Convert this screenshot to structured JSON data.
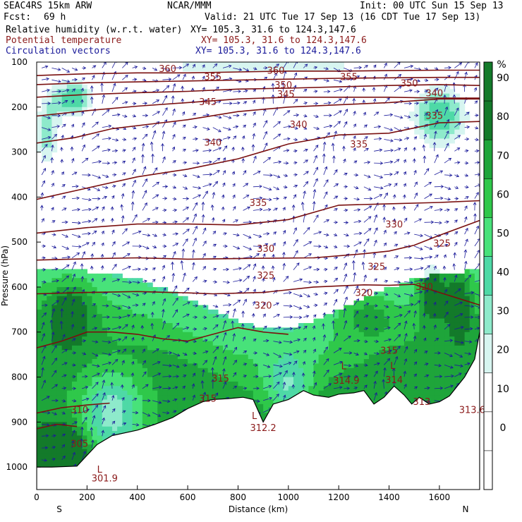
{
  "header": {
    "model": "SEAC4RS 15km ARW",
    "center": "NCAR/MMM",
    "init": "Init: 00 UTC Sun 15 Sep 13",
    "fcst_label": "Fcst:",
    "fcst_value": "69 h",
    "valid": "Valid: 21 UTC Tue 17 Sep 13 (16 CDT Tue 17 Sep 13)",
    "field1": "Relative humidity (w.r.t. water)",
    "field1_xy": "XY= 105.3, 31.6 to 124.3,147.6",
    "field2": "Potential temperature",
    "field2_xy": "XY= 105.3, 31.6 to 124.3,147.6",
    "field3": "Circulation vectors",
    "field3_xy": "XY= 105.3, 31.6 to 124.3,147.6"
  },
  "colors": {
    "rh_fill": [
      "#ffffff",
      "#ffffff",
      "#ffffff",
      "#d7f5f0",
      "#8eeacb",
      "#4ed9a6",
      "#48e27a",
      "#2fc84a",
      "#1ea53a",
      "#137a2a"
    ],
    "contour": "#7a1010",
    "vector": "#1a1a9a",
    "terrain": "#ffffff"
  },
  "chart_data": {
    "type": "heatmap",
    "xlabel": "Distance (km)",
    "ylabel": "Pressure (hPa)",
    "xlim": [
      0,
      1760
    ],
    "ylim": [
      1050,
      100
    ],
    "x_ticks": [
      0,
      200,
      400,
      600,
      800,
      1000,
      1200,
      1400,
      1600
    ],
    "y_ticks": [
      100,
      200,
      300,
      400,
      500,
      600,
      700,
      800,
      900,
      1000
    ],
    "endpoints": {
      "left": "S",
      "right": "N"
    },
    "colorbar": {
      "unit": "%",
      "ticks": [
        90,
        80,
        70,
        60,
        50,
        40,
        30,
        20,
        10,
        0
      ]
    },
    "terrain_surface": [
      [
        0,
        1000
      ],
      [
        60,
        1000
      ],
      [
        160,
        998
      ],
      [
        240,
        950
      ],
      [
        300,
        930
      ],
      [
        400,
        918
      ],
      [
        470,
        905
      ],
      [
        540,
        890
      ],
      [
        600,
        870
      ],
      [
        660,
        855
      ],
      [
        700,
        850
      ],
      [
        760,
        848
      ],
      [
        820,
        845
      ],
      [
        860,
        850
      ],
      [
        900,
        900
      ],
      [
        940,
        860
      ],
      [
        1000,
        850
      ],
      [
        1060,
        830
      ],
      [
        1100,
        840
      ],
      [
        1160,
        845
      ],
      [
        1200,
        838
      ],
      [
        1260,
        835
      ],
      [
        1300,
        830
      ],
      [
        1340,
        860
      ],
      [
        1380,
        845
      ],
      [
        1420,
        820
      ],
      [
        1460,
        840
      ],
      [
        1490,
        860
      ],
      [
        1520,
        845
      ],
      [
        1560,
        860
      ],
      [
        1600,
        855
      ],
      [
        1640,
        842
      ],
      [
        1700,
        800
      ],
      [
        1740,
        760
      ],
      [
        1760,
        700
      ]
    ],
    "theta_contours": [
      {
        "level": 305,
        "points": [
          [
            0,
            915
          ],
          [
            80,
            905
          ],
          [
            160,
            910
          ]
        ]
      },
      {
        "level": 310,
        "points": [
          [
            0,
            880
          ],
          [
            100,
            868
          ],
          [
            200,
            862
          ],
          [
            290,
            858
          ]
        ]
      },
      {
        "level": 315,
        "points": [
          [
            0,
            735
          ],
          [
            100,
            720
          ],
          [
            200,
            700
          ],
          [
            300,
            700
          ],
          [
            400,
            705
          ],
          [
            500,
            715
          ],
          [
            600,
            720
          ],
          [
            700,
            705
          ],
          [
            800,
            690
          ],
          [
            900,
            700
          ],
          [
            1000,
            705
          ]
        ]
      },
      {
        "level": 320,
        "points": [
          [
            0,
            615
          ],
          [
            200,
            612
          ],
          [
            400,
            610
          ],
          [
            600,
            613
          ],
          [
            700,
            615
          ],
          [
            900,
            612
          ],
          [
            1100,
            600
          ],
          [
            1300,
            595
          ],
          [
            1400,
            596
          ],
          [
            1500,
            594
          ],
          [
            1600,
            612
          ],
          [
            1760,
            640
          ]
        ]
      },
      {
        "level": 325,
        "points": [
          [
            0,
            540
          ],
          [
            200,
            537
          ],
          [
            400,
            535
          ],
          [
            600,
            538
          ],
          [
            900,
            536
          ],
          [
            1100,
            535
          ],
          [
            1300,
            526
          ],
          [
            1400,
            520
          ],
          [
            1500,
            507
          ],
          [
            1600,
            485
          ],
          [
            1760,
            452
          ]
        ]
      },
      {
        "level": 330,
        "points": [
          [
            0,
            480
          ],
          [
            200,
            468
          ],
          [
            400,
            460
          ],
          [
            600,
            460
          ],
          [
            800,
            462
          ],
          [
            1000,
            450
          ],
          [
            1200,
            418
          ],
          [
            1400,
            415
          ],
          [
            1600,
            412
          ],
          [
            1760,
            408
          ]
        ]
      },
      {
        "level": 335,
        "points": [
          [
            0,
            405
          ],
          [
            200,
            380
          ],
          [
            400,
            355
          ],
          [
            600,
            338
          ],
          [
            800,
            315
          ],
          [
            1000,
            282
          ],
          [
            1200,
            262
          ],
          [
            1400,
            258
          ],
          [
            1600,
            235
          ],
          [
            1760,
            232
          ]
        ]
      },
      {
        "level": 340,
        "points": [
          [
            0,
            280
          ],
          [
            150,
            268
          ],
          [
            300,
            248
          ],
          [
            450,
            238
          ],
          [
            600,
            228
          ],
          [
            800,
            210
          ],
          [
            1000,
            200
          ],
          [
            1200,
            195
          ],
          [
            1400,
            190
          ],
          [
            1600,
            182
          ],
          [
            1760,
            182
          ]
        ]
      },
      {
        "level": 345,
        "points": [
          [
            0,
            220
          ],
          [
            200,
            208
          ],
          [
            400,
            198
          ],
          [
            600,
            190
          ],
          [
            800,
            182
          ],
          [
            1000,
            178
          ],
          [
            1200,
            178
          ],
          [
            1400,
            178
          ],
          [
            1600,
            180
          ],
          [
            1760,
            180
          ]
        ]
      },
      {
        "level": 350,
        "points": [
          [
            0,
            178
          ],
          [
            200,
            172
          ],
          [
            400,
            168
          ],
          [
            600,
            165
          ],
          [
            800,
            160
          ],
          [
            1000,
            158
          ],
          [
            1200,
            155
          ],
          [
            1400,
            152
          ],
          [
            1600,
            150
          ],
          [
            1760,
            152
          ]
        ]
      },
      {
        "level": 355,
        "points": [
          [
            0,
            150
          ],
          [
            200,
            146
          ],
          [
            400,
            144
          ],
          [
            600,
            142
          ],
          [
            800,
            140
          ],
          [
            1000,
            138
          ],
          [
            1200,
            136
          ],
          [
            1400,
            135
          ],
          [
            1600,
            134
          ],
          [
            1760,
            134
          ]
        ]
      },
      {
        "level": 360,
        "points": [
          [
            0,
            130
          ],
          [
            200,
            126
          ],
          [
            400,
            124
          ],
          [
            600,
            124
          ],
          [
            800,
            122
          ],
          [
            1000,
            120
          ],
          [
            1200,
            120
          ],
          [
            1400,
            119
          ],
          [
            1600,
            118
          ],
          [
            1760,
            118
          ]
        ]
      }
    ],
    "theta_labels": [
      {
        "text": "360",
        "x": 520,
        "p": 122
      },
      {
        "text": "360",
        "x": 950,
        "p": 126
      },
      {
        "text": "355",
        "x": 700,
        "p": 140
      },
      {
        "text": "355",
        "x": 1240,
        "p": 140
      },
      {
        "text": "350",
        "x": 980,
        "p": 158
      },
      {
        "text": "350",
        "x": 1480,
        "p": 154
      },
      {
        "text": "345",
        "x": 680,
        "p": 196
      },
      {
        "text": "345",
        "x": 990,
        "p": 178
      },
      {
        "text": "340",
        "x": 1580,
        "p": 176
      },
      {
        "text": "340",
        "x": 1040,
        "p": 246
      },
      {
        "text": "340",
        "x": 700,
        "p": 286
      },
      {
        "text": "335",
        "x": 1580,
        "p": 226
      },
      {
        "text": "335",
        "x": 1280,
        "p": 290
      },
      {
        "text": "335",
        "x": 880,
        "p": 420
      },
      {
        "text": "330",
        "x": 1420,
        "p": 468
      },
      {
        "text": "330",
        "x": 910,
        "p": 522
      },
      {
        "text": "325",
        "x": 1610,
        "p": 510
      },
      {
        "text": "325",
        "x": 1350,
        "p": 562
      },
      {
        "text": "325",
        "x": 910,
        "p": 581
      },
      {
        "text": "320",
        "x": 1540,
        "p": 606
      },
      {
        "text": "320",
        "x": 1300,
        "p": 620
      },
      {
        "text": "320",
        "x": 900,
        "p": 648
      },
      {
        "text": "315",
        "x": 1400,
        "p": 748
      },
      {
        "text": "315",
        "x": 730,
        "p": 810
      },
      {
        "text": "315",
        "x": 680,
        "p": 855
      },
      {
        "text": "314.9",
        "x": 1230,
        "p": 815
      },
      {
        "text": "314",
        "x": 1420,
        "p": 813
      },
      {
        "text": "313",
        "x": 1530,
        "p": 862
      },
      {
        "text": "313.6",
        "x": 1730,
        "p": 880
      },
      {
        "text": "312.2",
        "x": 900,
        "p": 920
      },
      {
        "text": "310",
        "x": 170,
        "p": 880
      },
      {
        "text": "305",
        "x": 170,
        "p": 955
      },
      {
        "text": "301.9",
        "x": 270,
        "p": 1032
      }
    ],
    "lows": [
      {
        "text": "L",
        "x": 1220,
        "p": 783
      },
      {
        "text": "L",
        "x": 1415,
        "p": 782
      },
      {
        "text": "L",
        "x": 865,
        "p": 893
      },
      {
        "text": "L",
        "x": 250,
        "p": 1012
      }
    ]
  }
}
